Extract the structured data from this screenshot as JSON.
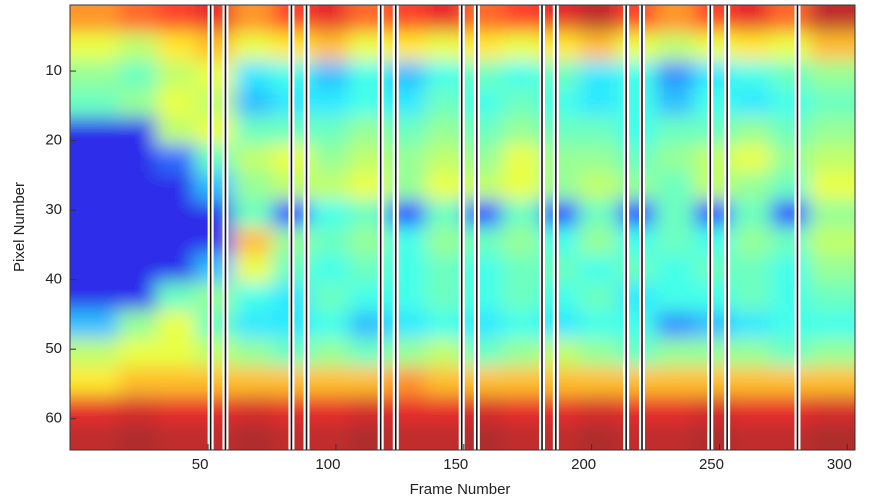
{
  "chart_data": {
    "type": "heatmap",
    "xlabel": "Frame Number",
    "ylabel": "Pixel Number",
    "colormap": "jet",
    "clim": [
      0,
      1
    ],
    "y_reversed": true,
    "xlim": [
      -4,
      303
    ],
    "ylim": [
      0.5,
      64.5
    ],
    "xticks": [
      50,
      100,
      150,
      200,
      250,
      300
    ],
    "yticks": [
      10,
      20,
      30,
      40,
      50,
      60
    ],
    "x": [
      7.5,
      22.5,
      37.5,
      52.5,
      67.5,
      82.5,
      97.5,
      112.5,
      127.5,
      142.5,
      157.5,
      172.5,
      187.5,
      202.5,
      217.5,
      232.5,
      247.5,
      262.5,
      277.5,
      292.5
    ],
    "y": [
      2.5,
      6.5,
      10.5,
      14.5,
      18.5,
      22.5,
      26.5,
      30.5,
      34.5,
      38.5,
      42.5,
      46.5,
      50.5,
      54.5,
      58.5,
      62.5
    ],
    "values": [
      [
        0.75,
        0.8,
        0.85,
        0.9,
        0.75,
        0.85,
        0.9,
        0.8,
        0.85,
        0.9,
        0.8,
        0.85,
        0.9,
        0.95,
        0.85,
        0.75,
        0.85,
        0.9,
        0.8,
        0.95
      ],
      [
        0.6,
        0.55,
        0.65,
        0.7,
        0.6,
        0.65,
        0.7,
        0.6,
        0.65,
        0.6,
        0.65,
        0.6,
        0.65,
        0.7,
        0.6,
        0.55,
        0.6,
        0.65,
        0.6,
        0.7
      ],
      [
        0.5,
        0.45,
        0.55,
        0.6,
        0.35,
        0.4,
        0.3,
        0.4,
        0.3,
        0.4,
        0.45,
        0.4,
        0.45,
        0.35,
        0.4,
        0.25,
        0.35,
        0.4,
        0.45,
        0.5
      ],
      [
        0.45,
        0.5,
        0.6,
        0.55,
        0.3,
        0.35,
        0.35,
        0.4,
        0.35,
        0.45,
        0.4,
        0.45,
        0.4,
        0.35,
        0.4,
        0.3,
        0.4,
        0.35,
        0.4,
        0.45
      ],
      [
        0.1,
        0.1,
        0.55,
        0.6,
        0.45,
        0.45,
        0.45,
        0.5,
        0.45,
        0.5,
        0.45,
        0.5,
        0.45,
        0.45,
        0.4,
        0.45,
        0.45,
        0.5,
        0.45,
        0.5
      ],
      [
        0.1,
        0.1,
        0.2,
        0.45,
        0.55,
        0.6,
        0.5,
        0.55,
        0.5,
        0.55,
        0.5,
        0.6,
        0.5,
        0.5,
        0.45,
        0.5,
        0.55,
        0.6,
        0.5,
        0.55
      ],
      [
        0.1,
        0.1,
        0.1,
        0.3,
        0.5,
        0.55,
        0.55,
        0.6,
        0.5,
        0.6,
        0.55,
        0.6,
        0.5,
        0.55,
        0.5,
        0.45,
        0.55,
        0.5,
        0.45,
        0.6
      ],
      [
        0.1,
        0.1,
        0.1,
        0.1,
        0.45,
        0.15,
        0.4,
        0.45,
        0.15,
        0.45,
        0.15,
        0.45,
        0.15,
        0.45,
        0.15,
        0.45,
        0.15,
        0.45,
        0.15,
        0.5
      ],
      [
        0.1,
        0.1,
        0.1,
        0.1,
        0.7,
        0.5,
        0.45,
        0.5,
        0.4,
        0.5,
        0.45,
        0.5,
        0.4,
        0.5,
        0.4,
        0.45,
        0.4,
        0.5,
        0.45,
        0.55
      ],
      [
        0.1,
        0.1,
        0.1,
        0.3,
        0.6,
        0.45,
        0.4,
        0.45,
        0.4,
        0.45,
        0.4,
        0.45,
        0.45,
        0.4,
        0.45,
        0.4,
        0.45,
        0.45,
        0.4,
        0.5
      ],
      [
        0.1,
        0.1,
        0.45,
        0.5,
        0.4,
        0.35,
        0.45,
        0.4,
        0.4,
        0.45,
        0.4,
        0.45,
        0.4,
        0.45,
        0.35,
        0.4,
        0.4,
        0.45,
        0.4,
        0.45
      ],
      [
        0.3,
        0.5,
        0.6,
        0.45,
        0.35,
        0.35,
        0.4,
        0.3,
        0.35,
        0.4,
        0.35,
        0.4,
        0.35,
        0.4,
        0.4,
        0.25,
        0.3,
        0.35,
        0.4,
        0.4
      ],
      [
        0.55,
        0.6,
        0.6,
        0.55,
        0.5,
        0.45,
        0.5,
        0.45,
        0.5,
        0.55,
        0.45,
        0.5,
        0.55,
        0.5,
        0.45,
        0.5,
        0.5,
        0.5,
        0.45,
        0.5
      ],
      [
        0.65,
        0.7,
        0.7,
        0.7,
        0.7,
        0.7,
        0.7,
        0.7,
        0.75,
        0.7,
        0.7,
        0.7,
        0.7,
        0.7,
        0.7,
        0.7,
        0.7,
        0.7,
        0.7,
        0.7
      ],
      [
        0.9,
        0.92,
        0.9,
        0.9,
        0.92,
        0.9,
        0.9,
        0.92,
        0.9,
        0.9,
        0.92,
        0.9,
        0.9,
        0.92,
        0.9,
        0.9,
        0.92,
        0.9,
        0.9,
        0.92
      ],
      [
        0.95,
        0.97,
        0.95,
        0.95,
        0.97,
        0.95,
        0.95,
        0.97,
        0.95,
        0.95,
        0.97,
        0.95,
        0.95,
        0.97,
        0.95,
        0.95,
        0.97,
        0.95,
        0.95,
        0.97
      ]
    ],
    "boundaries": [
      51,
      56.8,
      82.6,
      88.5,
      117.5,
      123.4,
      149.2,
      155.1,
      180.6,
      186,
      213.5,
      219.7,
      246.4,
      253,
      280.5
    ]
  }
}
